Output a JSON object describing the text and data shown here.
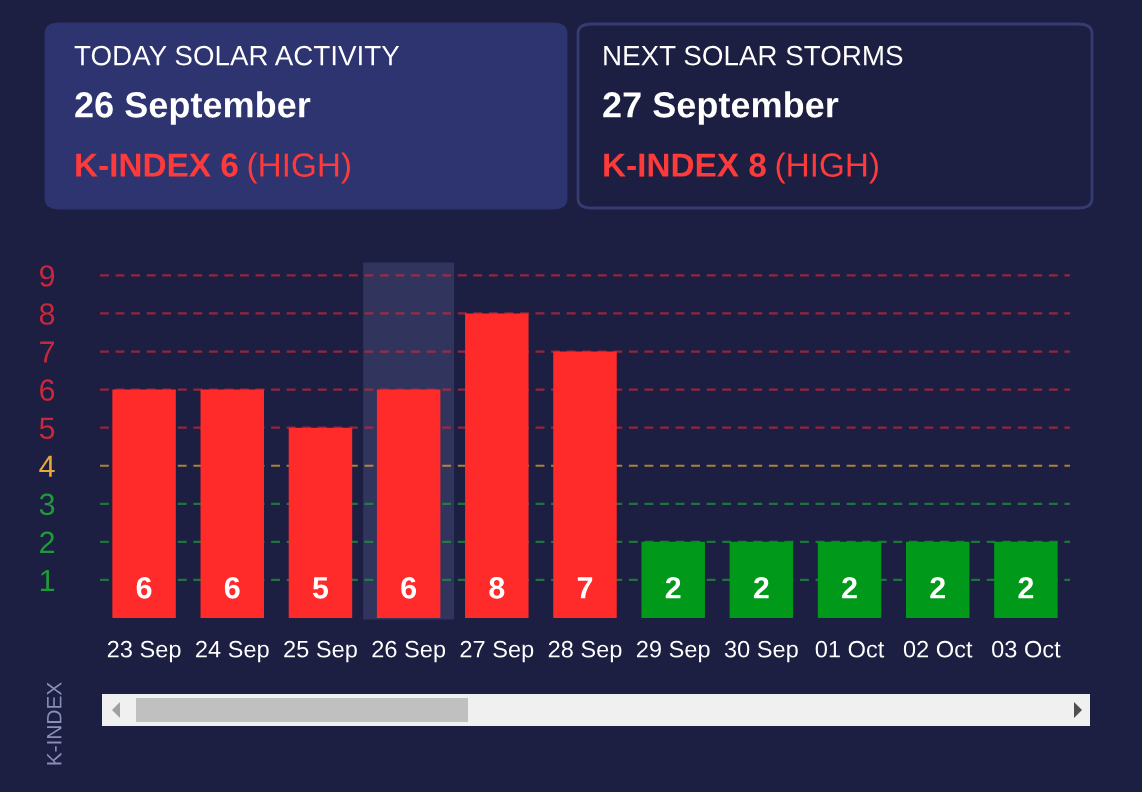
{
  "chart_data": {
    "type": "bar",
    "categories": [
      "23 Sep",
      "24 Sep",
      "25 Sep",
      "26 Sep",
      "27 Sep",
      "28 Sep",
      "29 Sep",
      "30 Sep",
      "01 Oct",
      "02 Oct",
      "03 Oct"
    ],
    "values": [
      6,
      6,
      5,
      6,
      8,
      7,
      2,
      2,
      2,
      2,
      2
    ],
    "colors": [
      "#ff2b2b",
      "#ff2b2b",
      "#ff2b2b",
      "#ff2b2b",
      "#ff2b2b",
      "#ff2b2b",
      "#00991a",
      "#00991a",
      "#00991a",
      "#00991a",
      "#00991a"
    ],
    "data_labels": true,
    "ylabel": "K-INDEX",
    "ylim": [
      0,
      9.3
    ],
    "yticks": [
      1,
      2,
      3,
      4,
      5,
      6,
      7,
      8,
      9
    ],
    "grid": false,
    "legend": false,
    "ref_lines": [
      {
        "axis": "y",
        "value": 1,
        "color": "#1f9a3a",
        "line_style": "dashed"
      },
      {
        "axis": "y",
        "value": 2,
        "color": "#1f9a3a",
        "line_style": "dashed"
      },
      {
        "axis": "y",
        "value": 3,
        "color": "#1f9a3a",
        "line_style": "dashed"
      },
      {
        "axis": "y",
        "value": 4,
        "color": "#e8a93a",
        "line_style": "dashed"
      },
      {
        "axis": "y",
        "value": 5,
        "color": "#c8283c",
        "line_style": "dashed"
      },
      {
        "axis": "y",
        "value": 6,
        "color": "#c8283c",
        "line_style": "dashed"
      },
      {
        "axis": "y",
        "value": 7,
        "color": "#c8283c",
        "line_style": "dashed"
      },
      {
        "axis": "y",
        "value": 8,
        "color": "#c8283c",
        "line_style": "dashed"
      },
      {
        "axis": "y",
        "value": 9,
        "color": "#c8283c",
        "line_style": "dashed"
      }
    ],
    "bands": [
      {
        "axis": "x",
        "from": "26 Sep",
        "to": "26 Sep",
        "color": "#31355e"
      }
    ],
    "annotations": [
      "TODAY SOLAR ACTIVITY",
      "26 September",
      "K-INDEX 6",
      "(HIGH)",
      "NEXT SOLAR STORMS",
      "27 September",
      "K-INDEX 8",
      "(HIGH)"
    ]
  }
}
